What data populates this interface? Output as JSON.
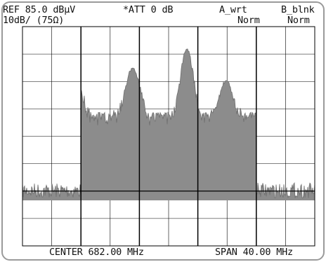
{
  "analyzer": {
    "reference_level": "REF 85.0 dBμV",
    "attenuation": "*ATT 0 dB",
    "trace_a_mode": "A_wrt",
    "trace_b_mode": "B_blnk",
    "scale": "10dB/ (75Ω)",
    "trace_a_detector": "Norm",
    "trace_b_detector": "Norm",
    "center_frequency": "CENTER 682.00 MHz",
    "span": "SPAN 40.00 MHz"
  },
  "colors": {
    "background": "#ffffff",
    "grid": "#000000",
    "trace_fill": "#8c8c8c",
    "trace_outline": "#6e6e6e",
    "bezel": "#9a9a9a",
    "text": "#111111"
  }
}
